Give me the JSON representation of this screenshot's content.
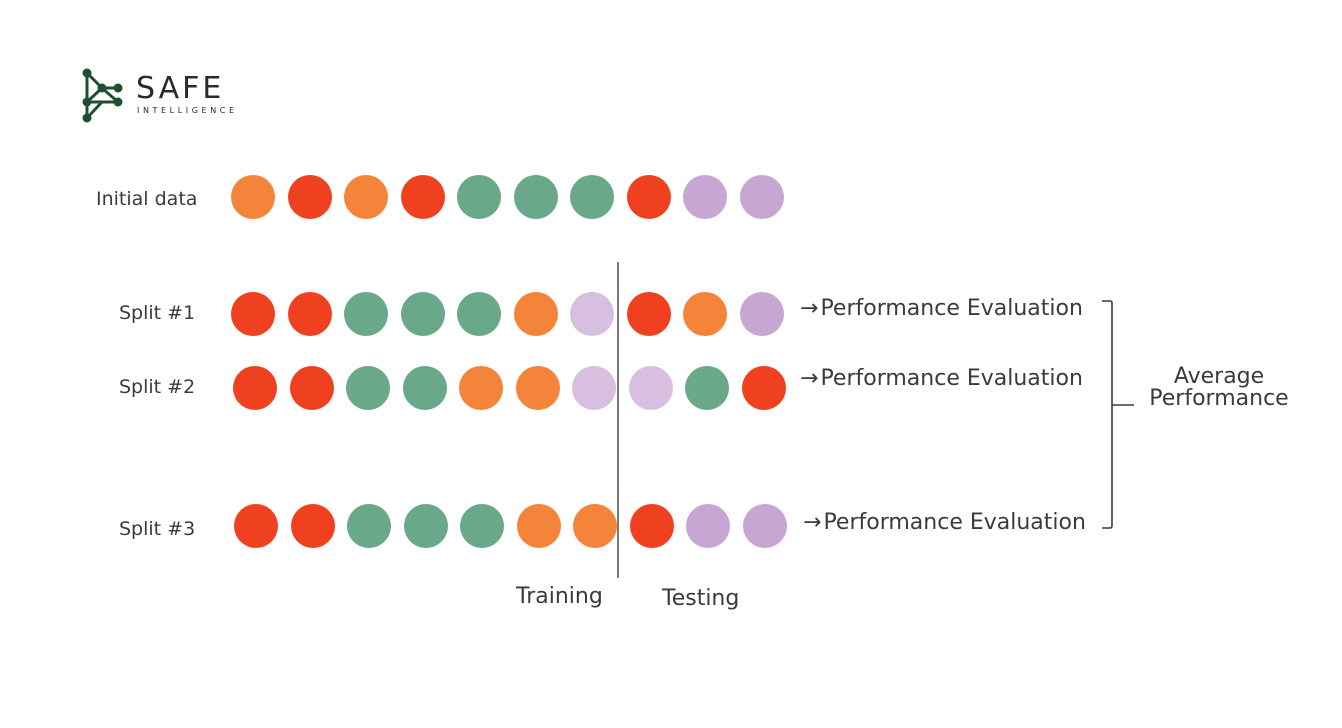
{
  "logo": {
    "word": "SAFE",
    "sub": "INTELLIGENCE",
    "color": "#1f4f2f"
  },
  "colors": {
    "orange": "#f5843b",
    "red": "#ef411f",
    "green": "#69a889",
    "purple": "#c8a6d3",
    "lightpurple": "#d8bfe0"
  },
  "rows": [
    {
      "label": "Initial data",
      "dots": [
        "orange",
        "red",
        "orange",
        "red",
        "green",
        "green",
        "green",
        "red",
        "purple",
        "purple"
      ]
    },
    {
      "label": "Split #1",
      "dots": [
        "red",
        "red",
        "green",
        "green",
        "green",
        "orange",
        "lightpurple",
        "red",
        "orange",
        "purple"
      ],
      "evaluation": "Performance Evaluation"
    },
    {
      "label": "Split #2",
      "dots": [
        "red",
        "red",
        "green",
        "green",
        "orange",
        "orange",
        "lightpurple",
        "lightpurple",
        "green",
        "red"
      ],
      "evaluation": "Performance Evaluation"
    },
    {
      "label": "Split #3",
      "dots": [
        "red",
        "red",
        "green",
        "green",
        "green",
        "orange",
        "orange",
        "red",
        "purple",
        "purple"
      ],
      "evaluation": "Performance Evaluation"
    }
  ],
  "arrow": "→",
  "average": {
    "line1": "Average",
    "line2": "Performance"
  },
  "labels": {
    "training": "Training",
    "testing": "Testing"
  }
}
